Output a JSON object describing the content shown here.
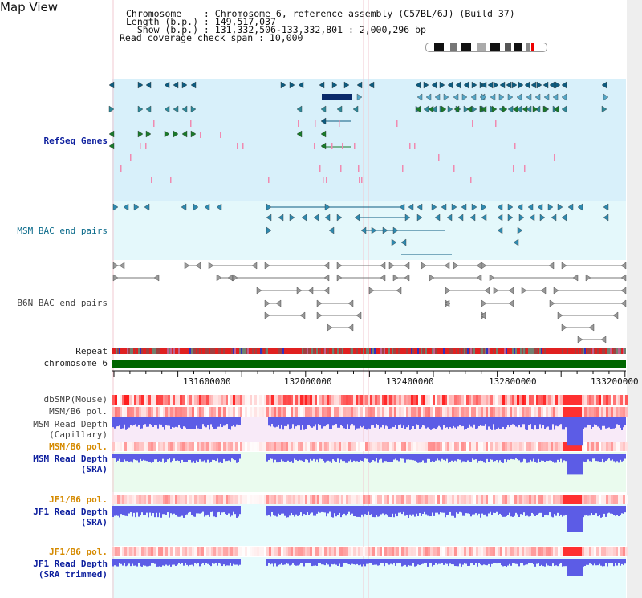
{
  "title": "Map View",
  "info": {
    "line1": "Chromosome    : Chromosome 6, reference assembly (C57BL/6J) (Build 37)",
    "line2": "Length (b.p.) : 149,517,037",
    "line3": "  Show (b.p.) : 131,332,506-133,332,801 : 2,000,296 bp",
    "line4": "Read coverage check span : 10,000"
  },
  "tracks": {
    "refseq": "RefSeq Genes",
    "msm_bac": "MSM BAC end pairs",
    "b6n_bac": "B6N BAC end pairs",
    "repeat": "Repeat",
    "chromosome": "chromosome 6",
    "dbsnp": "dbSNP(Mouse)",
    "msm_b6_pol_1": "MSM/B6 pol.",
    "msm_depth_cap_1": "MSM Read Depth",
    "msm_depth_cap_2": "(Capillary)",
    "msm_b6_pol_2": "MSM/B6 pol.",
    "msm_depth_sra_1": "MSM Read Depth",
    "msm_depth_sra_2": "(SRA)",
    "jf1_b6_pol_1": "JF1/B6 pol.",
    "jf1_depth_sra_1": "JF1 Read Depth",
    "jf1_depth_sra_2": "(SRA)",
    "jf1_b6_pol_2": "JF1/B6 pol.",
    "jf1_depth_trim_1": "JF1 Read Depth",
    "jf1_depth_trim_2": "(SRA trimmed)"
  },
  "axis_ticks": [
    "131600000",
    "132000000",
    "132400000",
    "132800000",
    "133200000"
  ],
  "colors": {
    "refseq_bg": "#d8f0fa",
    "msm_bac_bg": "#e4f8fb",
    "capillary_bg": "#f7e8f7",
    "sra_bg": "#eafaee",
    "jf1_bg": "#e4fafc",
    "chromosome": "#006600",
    "depth_blue": "#4a4ae0"
  }
}
